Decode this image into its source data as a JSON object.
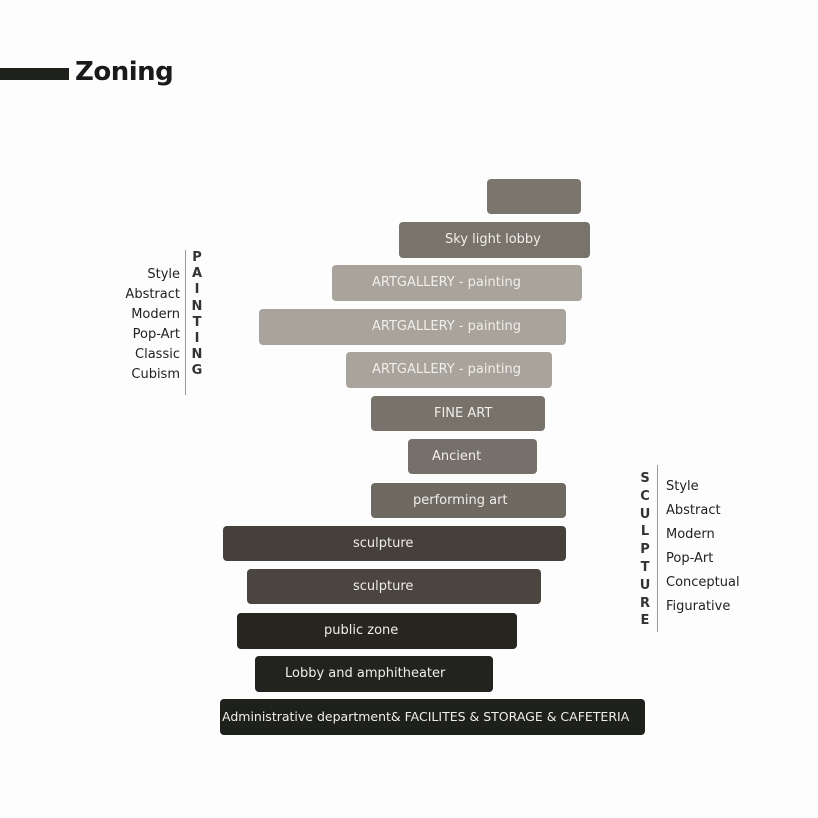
{
  "title": "Zoning",
  "zones": [
    {
      "label": "",
      "color": "#7a766d"
    },
    {
      "label": "Sky light lobby",
      "color": "#78746b"
    },
    {
      "label": "ARTGALLERY  - painting",
      "color": "#a8a49c"
    },
    {
      "label": "ARTGALLERY  - painting",
      "color": "#a8a49c"
    },
    {
      "label": "ARTGALLERY  - painting",
      "color": "#a8a49c"
    },
    {
      "label": "FINE ART",
      "color": "#77736a"
    },
    {
      "label": "Ancient",
      "color": "#75716a"
    },
    {
      "label": "performing art",
      "color": "#6e6a62"
    },
    {
      "label": "sculpture",
      "color": "#45403a"
    },
    {
      "label": "sculpture",
      "color": "#4a453e"
    },
    {
      "label": "public zone",
      "color": "#27251f"
    },
    {
      "label": "Lobby and amphitheater",
      "color": "#22231f"
    },
    {
      "label": "Administrative department&  FACILITES & STORAGE & CAFETERIA",
      "color": "#1e201c"
    }
  ],
  "painting": {
    "heading": "PAINTING",
    "styles": [
      "Style",
      "Abstract",
      "Modern",
      "Pop-Art",
      "Classic",
      "Cubism"
    ]
  },
  "sculpture": {
    "heading": "SCULPTURE",
    "styles": [
      "Style",
      "Abstract",
      "Modern",
      "Pop-Art",
      "Conceptual",
      "Figurative"
    ]
  }
}
